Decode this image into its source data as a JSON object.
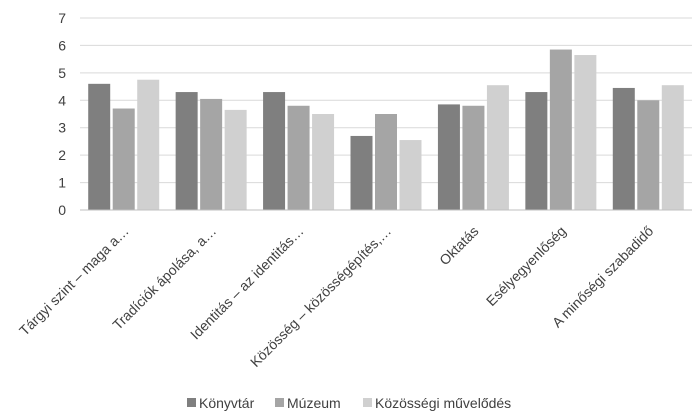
{
  "chart_data": {
    "type": "bar",
    "title": "",
    "xlabel": "",
    "ylabel": "",
    "ylim": [
      0,
      7
    ],
    "yticks": [
      0,
      1,
      2,
      3,
      4,
      5,
      6,
      7
    ],
    "grid": "horizontal",
    "legend_position": "bottom",
    "categories": [
      "Tárgyi szint – maga a…",
      "Tradíciók ápolása, a…",
      "Identitás – az identitás…",
      "Közösség – közösségépítés,…",
      "Oktatás",
      "Esélyegyenlőség",
      "A minőségi szabadidő"
    ],
    "series": [
      {
        "name": "Könyvtár",
        "color": "#7f7f7f",
        "values": [
          4.6,
          4.3,
          4.3,
          2.7,
          3.85,
          4.3,
          4.45
        ]
      },
      {
        "name": "Múzeum",
        "color": "#a5a5a5",
        "values": [
          3.7,
          4.05,
          3.8,
          3.5,
          3.8,
          5.85,
          4.0
        ]
      },
      {
        "name": "Közösségi művelődés",
        "color": "#d0d0d0",
        "values": [
          4.75,
          3.65,
          3.5,
          2.55,
          4.55,
          5.65,
          4.55
        ]
      }
    ]
  }
}
